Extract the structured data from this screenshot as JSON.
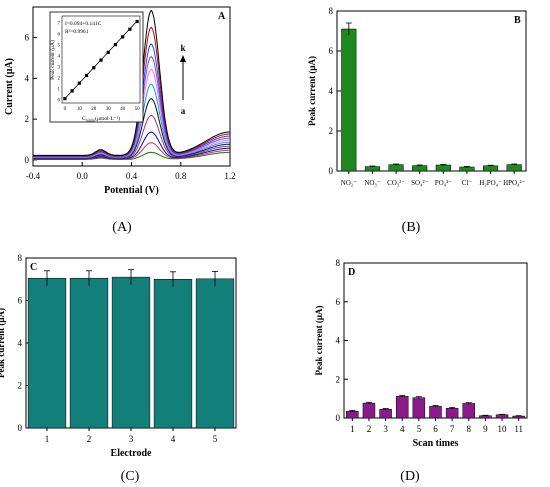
{
  "panel_captions": [
    "(A)",
    "(B)",
    "(C)",
    "(D)"
  ],
  "chart_data": [
    {
      "panel": "A",
      "type": "line",
      "letter": "A",
      "xlabel": "Potential (V)",
      "ylabel": "Current (μA)",
      "xlim": [
        -0.4,
        1.2
      ],
      "ylim": [
        -0.3,
        7.5
      ],
      "xticks": [
        "-0.4",
        "0.0",
        "0.4",
        "0.8",
        "1.2"
      ],
      "yticks": [
        "0",
        "2",
        "4",
        "6"
      ],
      "curve_labels": [
        "k",
        "a"
      ],
      "peaks_uA": [
        0.35,
        0.8,
        1.3,
        2.1,
        2.9,
        3.6,
        4.3,
        4.9,
        5.5,
        6.3,
        7.1
      ],
      "curve_colors": [
        "#008000",
        "#cc3366",
        "#0000cc",
        "#993399",
        "#111111",
        "#00aacc",
        "#ff66ff",
        "#8844dd",
        "#0055ff",
        "#cc0000",
        "#000000"
      ],
      "inset": {
        "equation": "I=0.094+0.141C",
        "r2": "R²=0.9961",
        "xlabel": "C",
        "xlabel_sub": "nitrite",
        "xlabel_unit": "(μmol·L⁻¹)",
        "ylabel": "Peak current (μA)",
        "x": [
          0,
          5,
          10,
          15,
          20,
          25,
          30,
          35,
          40,
          45,
          50
        ],
        "y": [
          0.1,
          0.8,
          1.5,
          2.2,
          2.9,
          3.6,
          4.3,
          5.0,
          5.7,
          6.4,
          7.1
        ],
        "xticks": [
          "0",
          "10",
          "20",
          "30",
          "40",
          "50"
        ],
        "yticks": [
          "0",
          "1",
          "2",
          "3",
          "4",
          "5",
          "6",
          "7"
        ]
      }
    },
    {
      "panel": "B",
      "type": "bar",
      "letter": "B",
      "ylabel": "Peak current (μA)",
      "categories": [
        "NO₂⁻",
        "NO₃⁻",
        "CO₃²⁻",
        "SO₄²⁻",
        "PO₄³⁻",
        "Cl⁻",
        "H₂PO₄⁻",
        "HPO₄²⁻"
      ],
      "values": [
        7.1,
        0.22,
        0.32,
        0.27,
        0.3,
        0.2,
        0.26,
        0.32
      ],
      "errors": [
        0.3,
        0.03,
        0.03,
        0.03,
        0.03,
        0.03,
        0.03,
        0.03
      ],
      "ylim": [
        0,
        8
      ],
      "yticks": [
        "0",
        "2",
        "4",
        "6",
        "8"
      ],
      "color": "#1e8a1e"
    },
    {
      "panel": "C",
      "type": "bar",
      "letter": "C",
      "xlabel": "Electrode",
      "ylabel": "Peak current (μA)",
      "categories": [
        "1",
        "2",
        "3",
        "4",
        "5"
      ],
      "values": [
        7.05,
        7.05,
        7.1,
        7.0,
        7.02
      ],
      "errors": [
        0.35,
        0.35,
        0.35,
        0.35,
        0.35
      ],
      "ylim": [
        0,
        8
      ],
      "yticks": [
        "0",
        "2",
        "4",
        "6",
        "8"
      ],
      "color": "#127f7a"
    },
    {
      "panel": "D",
      "type": "bar",
      "letter": "D",
      "xlabel": "Scan times",
      "ylabel": "Peak current (μA)",
      "categories": [
        "1",
        "2",
        "3",
        "4",
        "5",
        "6",
        "7",
        "8",
        "9",
        "10",
        "11"
      ],
      "values": [
        0.35,
        0.77,
        0.45,
        1.12,
        1.05,
        0.6,
        0.5,
        0.75,
        0.12,
        0.17,
        0.1
      ],
      "errors": [
        0.04,
        0.04,
        0.04,
        0.05,
        0.05,
        0.04,
        0.04,
        0.04,
        0.02,
        0.02,
        0.02
      ],
      "ylim": [
        0,
        8
      ],
      "yticks": [
        "0",
        "2",
        "4",
        "6",
        "8"
      ],
      "color": "#8b1a8b"
    }
  ]
}
